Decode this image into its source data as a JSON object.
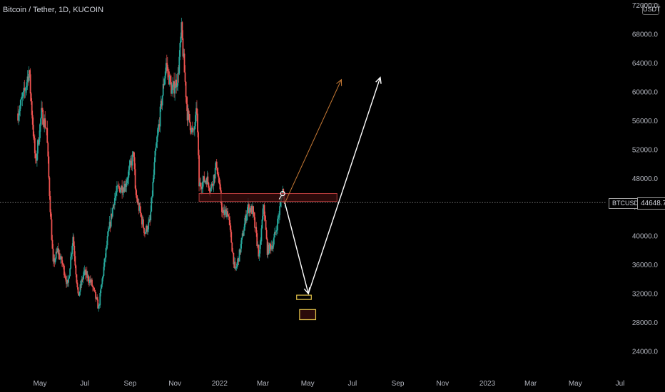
{
  "header": {
    "title": "Bitcoin / Tether, 1D, KUCOIN"
  },
  "currency_badge": "USDT",
  "symbol_label": "BTCUSDT",
  "last_price_label": "44648.7",
  "colors": {
    "up": "#26a69a",
    "down": "#ef5350",
    "zone_fill": "#3b0d0d",
    "zone_border": "#b33a3a",
    "target_box": "#e3c24a",
    "projection_orange": "#c77a35",
    "projection_white": "#ffffff",
    "price_line": "#8a8a8a"
  },
  "chart_data": {
    "type": "candlestick",
    "title": "Bitcoin / Tether, 1D, KUCOIN",
    "x_ticks": [
      "May",
      "Jul",
      "Sep",
      "Nov",
      "2022",
      "Mar",
      "May",
      "Jul",
      "Sep",
      "Nov",
      "2023",
      "Mar",
      "May",
      "Jul"
    ],
    "y_ticks": [
      72000,
      68000,
      64000,
      60000,
      56000,
      52000,
      48000,
      44000,
      40000,
      36000,
      32000,
      28000,
      24000
    ],
    "y_tick_labels": [
      "72000.0",
      "68000.0",
      "64000.0",
      "60000.0",
      "56000.0",
      "52000.0",
      "48000.0",
      "44000.0",
      "40000.0",
      "36000.0",
      "32000.0",
      "28000.0",
      "24000.0"
    ],
    "ylim": [
      21000,
      74000
    ],
    "last_price": 44648.7,
    "price_path": [
      [
        "2021-04-01",
        57000
      ],
      [
        "2021-04-10",
        60000
      ],
      [
        "2021-04-16",
        63000
      ],
      [
        "2021-04-25",
        50000
      ],
      [
        "2021-05-03",
        57000
      ],
      [
        "2021-05-10",
        55000
      ],
      [
        "2021-05-13",
        48000
      ],
      [
        "2021-05-19",
        36000
      ],
      [
        "2021-05-25",
        38000
      ],
      [
        "2021-06-01",
        36000
      ],
      [
        "2021-06-08",
        33000
      ],
      [
        "2021-06-15",
        40000
      ],
      [
        "2021-06-22",
        31500
      ],
      [
        "2021-06-30",
        35000
      ],
      [
        "2021-07-10",
        33500
      ],
      [
        "2021-07-20",
        30000
      ],
      [
        "2021-07-25",
        34000
      ],
      [
        "2021-08-01",
        39500
      ],
      [
        "2021-08-10",
        45000
      ],
      [
        "2021-08-15",
        46500
      ],
      [
        "2021-08-25",
        47000
      ],
      [
        "2021-09-06",
        51500
      ],
      [
        "2021-09-08",
        46000
      ],
      [
        "2021-09-21",
        40500
      ],
      [
        "2021-09-28",
        42000
      ],
      [
        "2021-10-05",
        51000
      ],
      [
        "2021-10-12",
        57000
      ],
      [
        "2021-10-20",
        64000
      ],
      [
        "2021-10-28",
        60000
      ],
      [
        "2021-11-05",
        62000
      ],
      [
        "2021-11-10",
        68500
      ],
      [
        "2021-11-18",
        57000
      ],
      [
        "2021-11-26",
        54000
      ],
      [
        "2021-12-01",
        57500
      ],
      [
        "2021-12-04",
        47000
      ],
      [
        "2021-12-14",
        48000
      ],
      [
        "2021-12-20",
        46500
      ],
      [
        "2021-12-28",
        50000
      ],
      [
        "2022-01-05",
        43000
      ],
      [
        "2022-01-12",
        43500
      ],
      [
        "2022-01-22",
        35000
      ],
      [
        "2022-01-28",
        37500
      ],
      [
        "2022-02-08",
        44000
      ],
      [
        "2022-02-15",
        43500
      ],
      [
        "2022-02-24",
        37000
      ],
      [
        "2022-03-02",
        44500
      ],
      [
        "2022-03-07",
        38000
      ],
      [
        "2022-03-15",
        39000
      ],
      [
        "2022-03-22",
        42500
      ],
      [
        "2022-03-28",
        46500
      ],
      [
        "2022-03-31",
        44648.7
      ]
    ],
    "annotations": {
      "resistance_zone": {
        "x_start": "2021-12-04",
        "x_end": "2022-06-10",
        "y_low": 44800,
        "y_high": 45900
      },
      "target_boxes": [
        {
          "x_start": "2022-04-16",
          "x_end": "2022-05-06",
          "y_low": 31200,
          "y_high": 31800
        },
        {
          "x_start": "2022-04-20",
          "x_end": "2022-05-12",
          "y_low": 28400,
          "y_high": 29800
        }
      ],
      "projection_orange": [
        [
          "2022-03-31",
          44600
        ],
        [
          "2022-06-16",
          61700
        ]
      ],
      "projection_white": [
        [
          "2022-03-31",
          44600
        ],
        [
          "2022-05-02",
          32000
        ],
        [
          "2022-08-08",
          62000
        ]
      ]
    }
  }
}
